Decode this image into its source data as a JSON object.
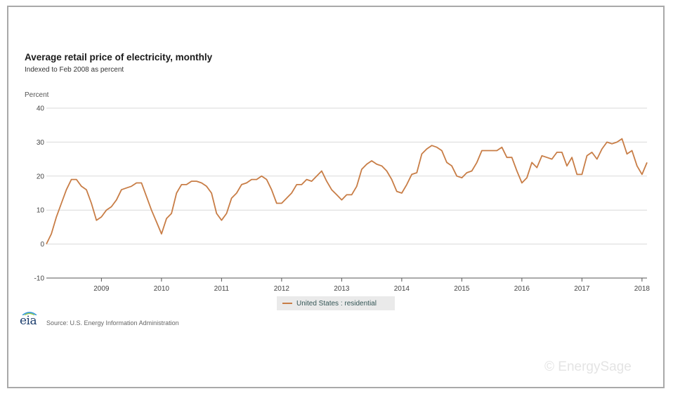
{
  "title": "Average retail price of electricity, monthly",
  "subtitle": "Indexed to Feb 2008 as percent",
  "source": "Source: U.S. Energy Information Administration",
  "logo_text": "eia",
  "watermark": "© EnergySage",
  "colors": {
    "series": "#c87d46",
    "grid": "#d9d9d9",
    "axis": "#333333"
  },
  "chart_data": {
    "type": "line",
    "title": "Average retail price of electricity, monthly",
    "subtitle": "Indexed to Feb 2008 as percent",
    "ylabel": "Percent",
    "xlabel": "",
    "ylim": [
      -10,
      40
    ],
    "yticks": [
      "40",
      "30",
      "20",
      "10",
      "0",
      "-10"
    ],
    "xticks": [
      "2009",
      "2010",
      "2011",
      "2012",
      "2013",
      "2014",
      "2015",
      "2016",
      "2017",
      "2018"
    ],
    "x_start": "2008-02",
    "x_end": "2018-03",
    "grid": true,
    "legend_position": "bottom",
    "series": [
      {
        "name": "United States : residential",
        "color": "#c87d46",
        "values": [
          0,
          3,
          8,
          12,
          16,
          19,
          19,
          17,
          16,
          12,
          7,
          8,
          10,
          11,
          13,
          16,
          16.5,
          17,
          18,
          18,
          14,
          10,
          6.5,
          3,
          7.5,
          9,
          15,
          17.5,
          17.5,
          18.5,
          18.5,
          18,
          17,
          15,
          9,
          7,
          9,
          13.5,
          15,
          17.5,
          18,
          19,
          19,
          20,
          19,
          16,
          12,
          12,
          13.5,
          15,
          17.5,
          17.5,
          19,
          18.5,
          20,
          21.5,
          18.5,
          16,
          14.5,
          13,
          14.5,
          14.5,
          17,
          22,
          23.5,
          24.5,
          23.5,
          23,
          21.5,
          19,
          15.5,
          15,
          17.5,
          20.5,
          21,
          26.5,
          28,
          29,
          28.5,
          27.5,
          24,
          23,
          20,
          19.5,
          21,
          21.5,
          24,
          27.5,
          27.5,
          27.5,
          27.5,
          28.5,
          25.5,
          25.5,
          21.5,
          18,
          19.5,
          24,
          22.5,
          26,
          25.5,
          25,
          27,
          27,
          23,
          25.5,
          20.5,
          20.5,
          26,
          27,
          25,
          28,
          30,
          29.5,
          30,
          31,
          26.5,
          27.5,
          23,
          20.5,
          24
        ]
      }
    ]
  }
}
